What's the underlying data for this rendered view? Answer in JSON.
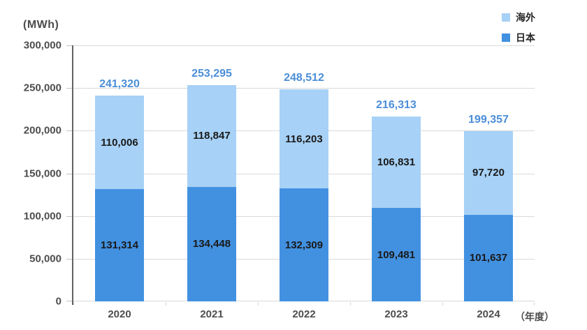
{
  "unit_label": "(MWh)",
  "x_axis_suffix": "（年度）",
  "legend": {
    "position": "top-right",
    "items": [
      {
        "label": "海外",
        "color": "#a7d1f6"
      },
      {
        "label": "日本",
        "color": "#4291e1"
      }
    ]
  },
  "colors": {
    "japan_bar": "#4291e1",
    "overseas_bar": "#a7d1f6",
    "total_label": "#4b8ed8",
    "segment_label": "#1a1a1a",
    "axis_text": "#4d4d4d",
    "gridline": "#d9d9d9",
    "axis_line": "#626262",
    "background": "#ffffff"
  },
  "chart_data": {
    "type": "bar",
    "stacked": true,
    "title": "",
    "ylabel": "(MWh)",
    "xlabel": "（年度）",
    "categories": [
      "2020",
      "2021",
      "2022",
      "2023",
      "2024"
    ],
    "series": [
      {
        "name": "日本",
        "color": "#4291e1",
        "values": [
          131314,
          134448,
          132309,
          109481,
          101637
        ]
      },
      {
        "name": "海外",
        "color": "#a7d1f6",
        "values": [
          110006,
          118847,
          116203,
          106831,
          97720
        ]
      }
    ],
    "totals": [
      241320,
      253295,
      248512,
      216313,
      199357
    ],
    "total_labels": [
      "241,320",
      "253,295",
      "248,512",
      "216,313",
      "199,357"
    ],
    "segment_labels": {
      "日本": [
        "131,314",
        "134,448",
        "132,309",
        "109,481",
        "101,637"
      ],
      "海外": [
        "110,006",
        "118,847",
        "116,203",
        "106,831",
        "97,720"
      ]
    },
    "ylim": [
      0,
      300000
    ],
    "ytick_step": 50000,
    "yticks": [
      "300,000",
      "250,000",
      "200,000",
      "150,000",
      "100,000",
      "50,000",
      "0"
    ],
    "grid": true,
    "legend_position": "top-right"
  }
}
